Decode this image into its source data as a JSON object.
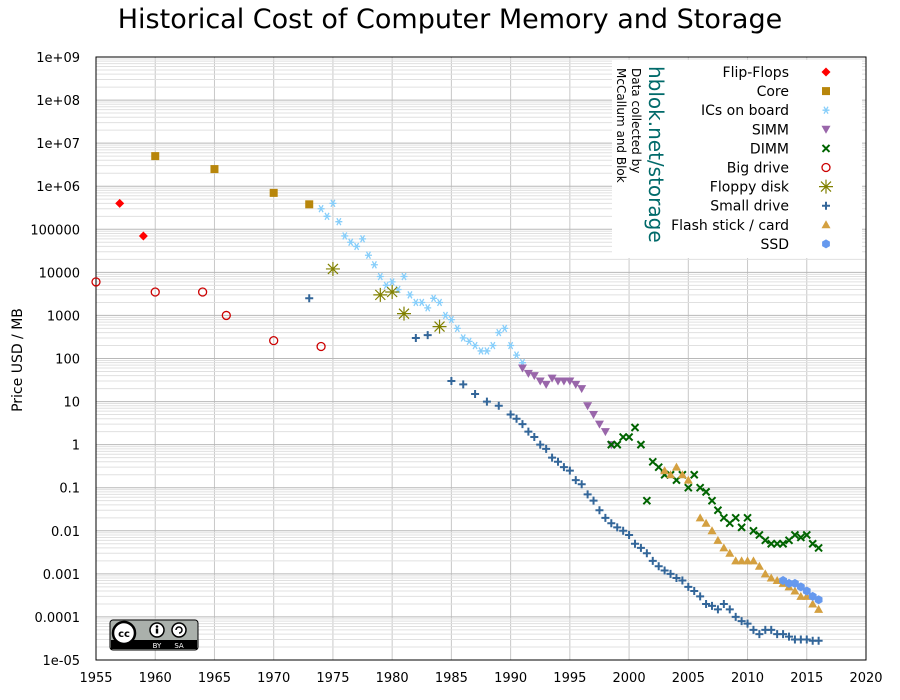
{
  "chart_data": {
    "type": "scatter",
    "title": "Historical Cost of Computer Memory and Storage",
    "xlabel": "",
    "ylabel": "Price USD / MB",
    "xlim": [
      1955,
      2020
    ],
    "ylim": [
      1e-05,
      1000000000
    ],
    "y_scale": "log",
    "grid": true,
    "legend_position": "top-right",
    "x_ticks": [
      "1955",
      "1960",
      "1965",
      "1970",
      "1975",
      "1980",
      "1985",
      "1990",
      "1995",
      "2000",
      "2005",
      "2010",
      "2015",
      "2020"
    ],
    "y_ticks": [
      "1e-05",
      "0.0001",
      "0.001",
      "0.01",
      "0.1",
      "1",
      "10",
      "100",
      "1000",
      "10000",
      "100000",
      "1e+06",
      "1e+07",
      "1e+08",
      "1e+09"
    ],
    "annotations": {
      "site": "hblok.net/storage",
      "credit_line1": "Data collected by",
      "credit_line2": "McCallum and Blok"
    },
    "license_badge": {
      "main": "cc",
      "by": "BY",
      "sa": "SA"
    },
    "series": [
      {
        "name": "Flip-Flops",
        "color": "#ff0000",
        "marker": "diamond",
        "x": [
          1957,
          1959
        ],
        "y": [
          400000,
          70000
        ]
      },
      {
        "name": "Core",
        "color": "#b8860b",
        "marker": "square",
        "x": [
          1960,
          1965,
          1970,
          1973
        ],
        "y": [
          5000000,
          2500000,
          700000,
          380000
        ]
      },
      {
        "name": "ICs on board",
        "color": "#87cefa",
        "marker": "star",
        "x": [
          1974.0,
          1974.5,
          1975.0,
          1975.5,
          1976.0,
          1976.5,
          1977.0,
          1977.5,
          1978.0,
          1978.5,
          1979.0,
          1979.5,
          1980.0,
          1980.5,
          1981.0,
          1981.5,
          1982.0,
          1982.5,
          1983.0,
          1983.5,
          1984.0,
          1984.5,
          1985.0,
          1985.5,
          1986.0,
          1986.5,
          1987.0,
          1987.5,
          1988.0,
          1988.5,
          1989.0,
          1989.5,
          1990.0,
          1990.5,
          1991.0
        ],
        "y": [
          300000,
          200000,
          400000,
          150000,
          70000,
          50000,
          40000,
          60000,
          25000,
          15000,
          8000,
          5000,
          6000,
          4000,
          8000,
          3000,
          2000,
          2000,
          1500,
          2500,
          2000,
          1000,
          800,
          500,
          300,
          250,
          200,
          150,
          150,
          200,
          400,
          500,
          200,
          120,
          80
        ]
      },
      {
        "name": "SIMM",
        "color": "#9966aa",
        "marker": "triangle-down",
        "x": [
          1991.0,
          1991.5,
          1992.0,
          1992.5,
          1993.0,
          1993.5,
          1994.0,
          1994.5,
          1995.0,
          1995.5,
          1996.0,
          1996.5,
          1997.0,
          1997.5,
          1998.0,
          1998.5
        ],
        "y": [
          60,
          45,
          40,
          30,
          25,
          35,
          30,
          30,
          30,
          25,
          20,
          8,
          5,
          3,
          2,
          1
        ]
      },
      {
        "name": "DIMM",
        "color": "#006400",
        "marker": "x",
        "x": [
          1998.5,
          1999.0,
          1999.5,
          2000.0,
          2000.5,
          2001.0,
          2001.5,
          2002.0,
          2002.5,
          2003.0,
          2003.5,
          2004.0,
          2004.5,
          2005.0,
          2005.5,
          2006.0,
          2006.5,
          2007.0,
          2007.5,
          2008.0,
          2008.5,
          2009.0,
          2009.5,
          2010.0,
          2010.5,
          2011.0,
          2011.5,
          2012.0,
          2012.5,
          2013.0,
          2013.5,
          2014.0,
          2014.5,
          2015.0,
          2015.5,
          2016.0
        ],
        "y": [
          1,
          1,
          1.5,
          1.5,
          2.5,
          1,
          0.05,
          0.4,
          0.3,
          0.2,
          0.2,
          0.15,
          0.2,
          0.1,
          0.2,
          0.1,
          0.08,
          0.05,
          0.03,
          0.02,
          0.015,
          0.02,
          0.012,
          0.02,
          0.01,
          0.008,
          0.006,
          0.005,
          0.005,
          0.005,
          0.006,
          0.008,
          0.007,
          0.008,
          0.005,
          0.004
        ]
      },
      {
        "name": "Big drive",
        "color": "#cc0000",
        "marker": "circle-open",
        "x": [
          1955,
          1960,
          1964,
          1966,
          1970,
          1974
        ],
        "y": [
          6000,
          3500,
          3500,
          1000,
          260,
          190
        ]
      },
      {
        "name": "Floppy disk",
        "color": "#808000",
        "marker": "asterisk",
        "x": [
          1975,
          1979,
          1980,
          1981,
          1984
        ],
        "y": [
          12000,
          3000,
          3500,
          1100,
          550
        ]
      },
      {
        "name": "Small drive",
        "color": "#336699",
        "marker": "plus",
        "x": [
          1973.0,
          1982.0,
          1983.0,
          1985.0,
          1986.0,
          1987.0,
          1988.0,
          1989.0,
          1990.0,
          1990.5,
          1991.0,
          1991.5,
          1992.0,
          1992.5,
          1993.0,
          1993.5,
          1994.0,
          1994.5,
          1995.0,
          1995.5,
          1996.0,
          1996.5,
          1997.0,
          1997.5,
          1998.0,
          1998.5,
          1999.0,
          1999.5,
          2000.0,
          2000.5,
          2001.0,
          2001.5,
          2002.0,
          2002.5,
          2003.0,
          2003.5,
          2004.0,
          2004.5,
          2005.0,
          2005.5,
          2006.0,
          2006.5,
          2007.0,
          2007.5,
          2008.0,
          2008.5,
          2009.0,
          2009.5,
          2010.0,
          2010.5,
          2011.0,
          2011.5,
          2012.0,
          2012.5,
          2013.0,
          2013.5,
          2014.0,
          2014.5,
          2015.0,
          2015.5,
          2016.0
        ],
        "y": [
          2500,
          300,
          350,
          30,
          25,
          15,
          10,
          8,
          5,
          4,
          3,
          2,
          1.5,
          1,
          0.8,
          0.5,
          0.4,
          0.3,
          0.25,
          0.15,
          0.12,
          0.07,
          0.05,
          0.03,
          0.02,
          0.015,
          0.012,
          0.01,
          0.008,
          0.005,
          0.004,
          0.003,
          0.002,
          0.0015,
          0.0012,
          0.001,
          0.0008,
          0.0007,
          0.0005,
          0.0004,
          0.0003,
          0.0002,
          0.00018,
          0.00015,
          0.0002,
          0.00015,
          0.0001,
          8e-05,
          7e-05,
          5e-05,
          4e-05,
          5e-05,
          5e-05,
          4e-05,
          4e-05,
          3.5e-05,
          3e-05,
          3e-05,
          3e-05,
          2.8e-05,
          2.8e-05
        ]
      },
      {
        "name": "Flash stick / card",
        "color": "#d4a040",
        "marker": "triangle-up",
        "x": [
          2003.0,
          2003.5,
          2004.0,
          2004.5,
          2005.0,
          2006.0,
          2006.5,
          2007.0,
          2007.5,
          2008.0,
          2008.5,
          2009.0,
          2009.5,
          2010.0,
          2010.5,
          2011.0,
          2011.5,
          2012.0,
          2012.5,
          2013.0,
          2013.5,
          2014.0,
          2014.5,
          2015.0,
          2015.5,
          2016.0
        ],
        "y": [
          0.25,
          0.2,
          0.3,
          0.2,
          0.15,
          0.02,
          0.015,
          0.01,
          0.006,
          0.004,
          0.003,
          0.002,
          0.002,
          0.002,
          0.002,
          0.0015,
          0.001,
          0.0008,
          0.0007,
          0.0006,
          0.0005,
          0.0004,
          0.0003,
          0.0003,
          0.0002,
          0.00015
        ]
      },
      {
        "name": "SSD",
        "color": "#6699ee",
        "marker": "hexagon",
        "x": [
          2013.0,
          2013.5,
          2014.0,
          2014.5,
          2015.0,
          2015.5,
          2016.0
        ],
        "y": [
          0.0007,
          0.0006,
          0.0006,
          0.0005,
          0.0004,
          0.0003,
          0.00025
        ]
      }
    ]
  }
}
